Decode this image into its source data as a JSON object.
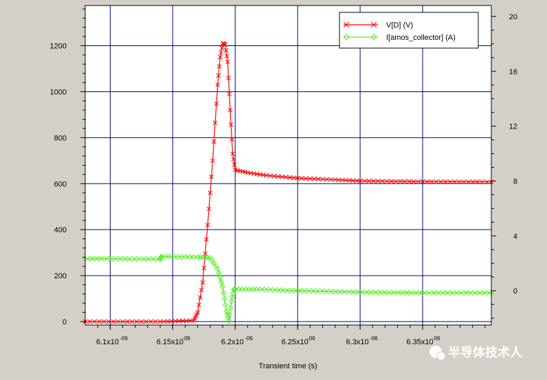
{
  "chart_data": {
    "type": "line",
    "title": "",
    "xlabel": "Transient time (s)",
    "ylabel": "",
    "ylabel_right": "",
    "x_ticks": [
      "6.1x10",
      "6.15x10",
      "6.2x10",
      "6.25x10",
      "6.3x10",
      "6.35x10"
    ],
    "x_tick_exponent": "-06",
    "x_tick_values": [
      6.1e-06,
      6.15e-06,
      6.2e-06,
      6.25e-06,
      6.3e-06,
      6.35e-06
    ],
    "xlim": [
      6.08e-06,
      6.405e-06
    ],
    "ylim": [
      -15,
      1375
    ],
    "y_ticks": [
      0,
      200,
      400,
      600,
      800,
      1000,
      1200
    ],
    "ylim_right": [
      -2.5,
      20.8
    ],
    "y_ticks_right": [
      0,
      4,
      8,
      12,
      16,
      20
    ],
    "grid": true,
    "legend_position": "top-right",
    "series": [
      {
        "name": "V[D] (V)",
        "axis": "left",
        "color": "#ff0000",
        "marker": "x",
        "x": [
          6.08e-06,
          6.14e-06,
          6.167e-06,
          6.17e-06,
          6.174e-06,
          6.178e-06,
          6.182e-06,
          6.186e-06,
          6.188e-06,
          6.19e-06,
          6.192e-06,
          6.194e-06,
          6.196e-06,
          6.198e-06,
          6.2e-06,
          6.21e-06,
          6.225e-06,
          6.25e-06,
          6.28e-06,
          6.3e-06,
          6.35e-06,
          6.405e-06
        ],
        "y": [
          0,
          0,
          5,
          40,
          170,
          420,
          700,
          1030,
          1150,
          1210,
          1205,
          1130,
          920,
          730,
          660,
          648,
          636,
          624,
          617,
          612,
          609,
          608
        ]
      },
      {
        "name": "I[amos_collector] (A)",
        "axis": "right",
        "color": "#55ee22",
        "marker": "diamond",
        "x": [
          6.08e-06,
          6.14e-06,
          6.141e-06,
          6.17e-06,
          6.18e-06,
          6.186e-06,
          6.19e-06,
          6.193e-06,
          6.195e-06,
          6.197e-06,
          6.199e-06,
          6.2e-06,
          6.22e-06,
          6.25e-06,
          6.3e-06,
          6.35e-06,
          6.405e-06
        ],
        "y": [
          2.35,
          2.3,
          2.5,
          2.45,
          2.4,
          1.6,
          0.3,
          -1.5,
          -2.2,
          -0.8,
          0.1,
          0.12,
          0.1,
          0.0,
          -0.1,
          -0.15,
          -0.15
        ]
      }
    ]
  },
  "watermark": {
    "text": "半导体技术人"
  }
}
